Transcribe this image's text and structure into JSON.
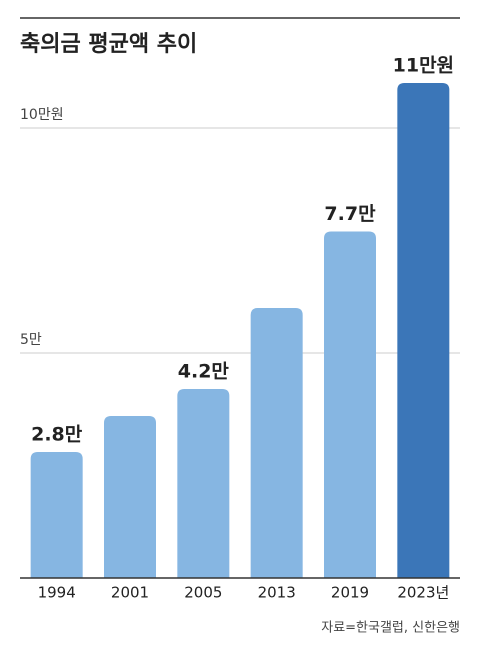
{
  "chart_data": {
    "type": "bar",
    "title": "축의금 평균액 추이",
    "categories": [
      "1994",
      "2001",
      "2005",
      "2013",
      "2019",
      "2023년"
    ],
    "values": [
      2.8,
      3.6,
      4.2,
      6.0,
      7.7,
      11
    ],
    "value_labels": [
      "2.8만",
      null,
      "4.2만",
      null,
      "7.7만",
      "11만원"
    ],
    "colors": [
      "#86b6e2",
      "#86b6e2",
      "#86b6e2",
      "#86b6e2",
      "#86b6e2",
      "#3b76b8"
    ],
    "ylim": [
      0,
      12
    ],
    "yticks": [
      {
        "value": 5,
        "label": "5만"
      },
      {
        "value": 10,
        "label": "10만원"
      }
    ],
    "grid": true,
    "source": "자료=한국갤럽, 신한은행"
  }
}
